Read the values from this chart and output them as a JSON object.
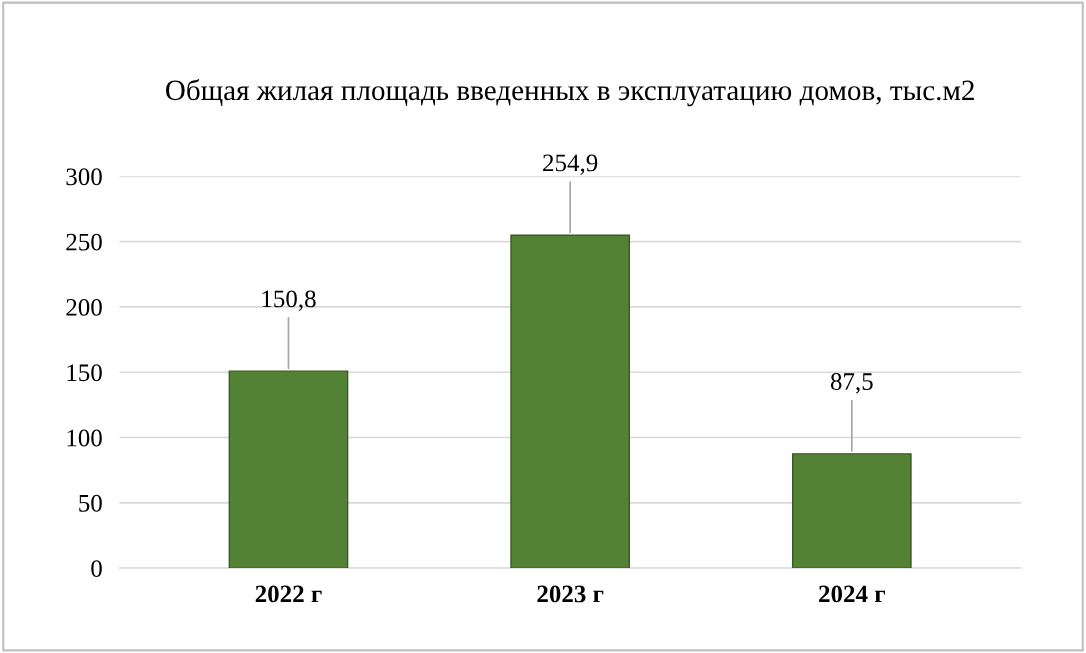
{
  "chart_data": {
    "type": "bar",
    "title": "Общая жилая площадь введенных в эксплуатацию домов, тыс.м2",
    "categories": [
      "2022 г",
      "2023 г",
      "2024 г"
    ],
    "values": [
      150.8,
      254.9,
      87.5
    ],
    "value_labels": [
      "150,8",
      "254,9",
      "87,5"
    ],
    "color": "#548235",
    "ylim": [
      0,
      300
    ],
    "yticks": [
      0,
      50,
      100,
      150,
      200,
      250,
      300
    ],
    "grid": "y"
  }
}
